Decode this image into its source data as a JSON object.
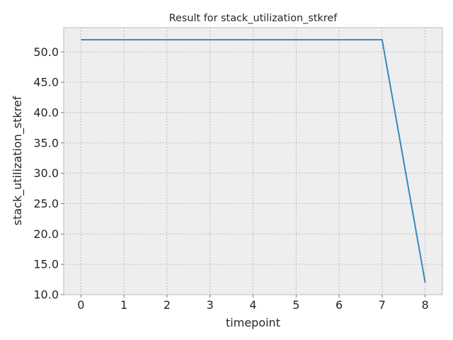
{
  "chart_data": {
    "type": "line",
    "title": "Result for stack_utilization_stkref",
    "xlabel": "timepoint",
    "ylabel": "stack_utilization_stkref",
    "x": [
      0,
      1,
      2,
      3,
      4,
      5,
      6,
      7,
      8
    ],
    "series": [
      {
        "values": [
          52,
          52,
          52,
          52,
          52,
          52,
          52,
          52,
          12
        ],
        "color": "#348abd"
      }
    ],
    "xticks": [
      "0",
      "1",
      "2",
      "3",
      "4",
      "5",
      "6",
      "7",
      "8"
    ],
    "yticks": [
      "10.0",
      "15.0",
      "20.0",
      "25.0",
      "30.0",
      "35.0",
      "40.0",
      "45.0",
      "50.0"
    ],
    "xlim": [
      -0.4,
      8.4
    ],
    "ylim": [
      10,
      54
    ],
    "grid": true,
    "background": "#eeeeee",
    "grid_color": "#b2b2b2"
  }
}
